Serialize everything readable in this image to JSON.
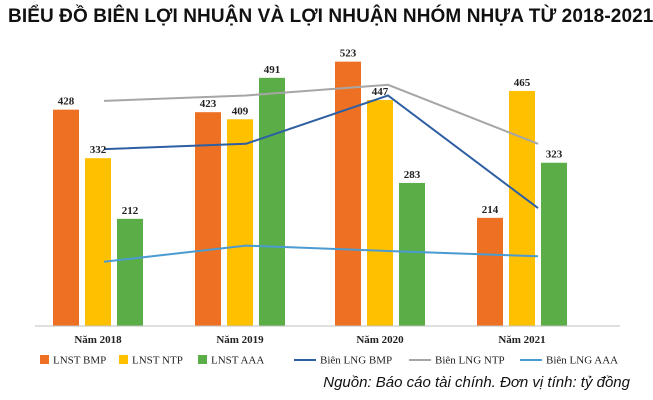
{
  "title": "BIỂU ĐỒ BIÊN LỢI NHUẬN VÀ LỢI NHUẬN NHÓM NHỰA TỪ 2018-2021",
  "source": "Nguồn: Báo cáo tài chính. Đơn vị tính: tỷ đồng",
  "chart_data": {
    "type": "bar",
    "title": "BIỂU ĐỒ BIÊN LỢI NHUẬN VÀ LỢI NHUẬN NHÓM NHỰA TỪ 2018-2021",
    "categories": [
      "Năm 2018",
      "Năm 2019",
      "Năm 2020",
      "Năm 2021"
    ],
    "ylim": [
      0,
      550
    ],
    "grid": false,
    "legend_position": "bottom",
    "series": [
      {
        "name": "LNST BMP",
        "kind": "bar",
        "color": "#EE7023",
        "values": [
          428,
          423,
          523,
          214
        ]
      },
      {
        "name": "LNST NTP",
        "kind": "bar",
        "color": "#FFC000",
        "values": [
          332,
          409,
          447,
          465
        ]
      },
      {
        "name": "LNST AAA",
        "kind": "bar",
        "color": "#5BAE47",
        "values": [
          212,
          491,
          283,
          323
        ]
      }
    ],
    "line_series": [
      {
        "name": "Biên LNG BMP",
        "kind": "line",
        "color": "#2E5FA3",
        "values": [
          0.33,
          0.34,
          0.43,
          0.22
        ],
        "unlabeled": true
      },
      {
        "name": "Biên LNG NTP",
        "kind": "line",
        "color": "#A6A6A6",
        "values": [
          0.42,
          0.43,
          0.45,
          0.34
        ],
        "unlabeled": true
      },
      {
        "name": "Biên LNG AAA",
        "kind": "line",
        "color": "#4A9BD1",
        "values": [
          0.12,
          0.15,
          0.14,
          0.13
        ],
        "unlabeled": true
      }
    ]
  }
}
